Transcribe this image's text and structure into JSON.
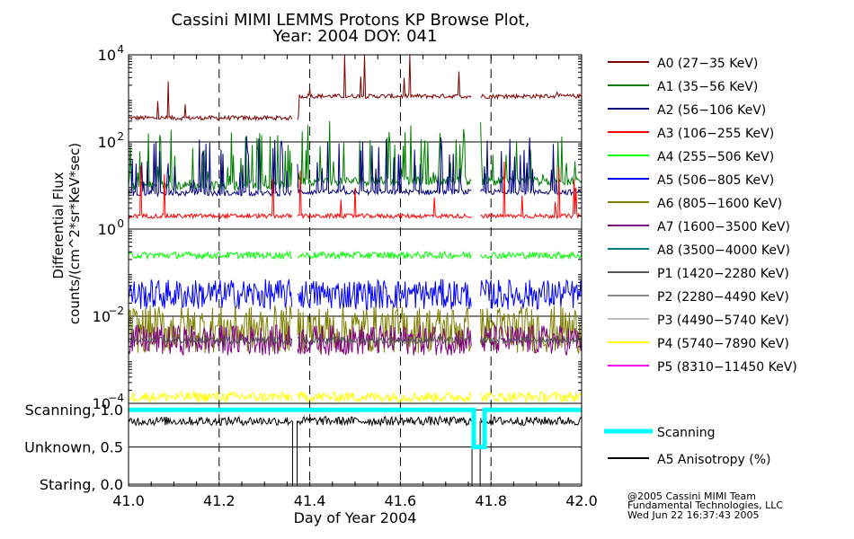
{
  "chart_data": {
    "type": "line",
    "title_line1": "Cassini MIMI LEMMS Protons KP Browse Plot,",
    "title_line2": "Year: 2004 DOY: 041",
    "xlabel": "Day of Year 2004",
    "ylabel_line1": "Differential Flux",
    "ylabel_line2": "counts/(cm^2*sr*KeV*sec)",
    "xlim": [
      41.0,
      42.0
    ],
    "x_ticks": [
      "41.0",
      "41.2",
      "41.4",
      "41.6",
      "41.8",
      "42.0"
    ],
    "x_tick_values": [
      41.0,
      41.2,
      41.4,
      41.6,
      41.8,
      42.0
    ],
    "ylim_log10": [
      -4,
      4
    ],
    "y_ticks": [
      {
        "base": "10",
        "exp": "4",
        "log": 4
      },
      {
        "base": "10",
        "exp": "2",
        "log": 2
      },
      {
        "base": "10",
        "exp": "0",
        "log": 0
      },
      {
        "base": "10",
        "exp": "−2",
        "log": -2
      },
      {
        "base": "10",
        "exp": "−4",
        "log": -4
      }
    ],
    "data_gaps": [
      [
        41.362,
        41.372
      ],
      [
        41.758,
        41.776
      ]
    ],
    "series": [
      {
        "name": "A0 (27−35 KeV)",
        "color": "#7f0000",
        "levels": [
          [
            41.0,
            2.55
          ],
          [
            41.376,
            3.05
          ]
        ],
        "noise": 0.05,
        "spikes": 0.005
      },
      {
        "name": "A1 (35−56 KeV)",
        "color": "#007f00",
        "levels": [
          [
            41.0,
            1.0
          ],
          [
            41.376,
            1.1
          ]
        ],
        "noise": 0.1,
        "spikes": 0.05
      },
      {
        "name": "A2 (56−106 KeV)",
        "color": "#00007f",
        "levels": [
          [
            41.0,
            0.82
          ],
          [
            41.376,
            0.85
          ]
        ],
        "noise": 0.06,
        "spikes": 0.04
      },
      {
        "name": "A3 (106−255 KeV)",
        "color": "#ff0000",
        "levels": [
          [
            41.0,
            0.3
          ]
        ],
        "noise": 0.05,
        "spikes": 0.008
      },
      {
        "name": "A4 (255−506 KeV)",
        "color": "#00ff00",
        "levels": [
          [
            41.0,
            -0.6
          ]
        ],
        "noise": 0.08,
        "spikes": 0.0
      },
      {
        "name": "A5 (506−805 KeV)",
        "color": "#0000ff",
        "levels": [
          [
            41.0,
            -1.5
          ]
        ],
        "noise": 0.35,
        "spikes": 0.0
      },
      {
        "name": "A6 (805−1600 KeV)",
        "color": "#7f7f00",
        "levels": [
          [
            41.0,
            -2.3
          ]
        ],
        "noise": 0.55,
        "spikes": 0.0
      },
      {
        "name": "A7 (1600−3500 KeV)",
        "color": "#7f007f",
        "levels": [
          [
            41.0,
            -2.55
          ]
        ],
        "noise": 0.35,
        "spikes": 0.0
      },
      {
        "name": "A8 (3500−4000 KeV)",
        "color": "#007f7f",
        "levels": [],
        "noise": 0,
        "spikes": 0
      },
      {
        "name": "P1 (1420−2280 KeV)",
        "color": "#555555",
        "levels": [
          [
            41.0,
            -2.55
          ]
        ],
        "noise": 0.08,
        "spikes": 0.0
      },
      {
        "name": "P2 (2280−4490 KeV)",
        "color": "#888888",
        "levels": [],
        "noise": 0,
        "spikes": 0
      },
      {
        "name": "P3 (4490−5740 KeV)",
        "color": "#bbbbbb",
        "levels": [],
        "noise": 0,
        "spikes": 0
      },
      {
        "name": "P4 (5740−7890 KeV)",
        "color": "#ffff00",
        "levels": [
          [
            41.0,
            -3.85
          ]
        ],
        "noise": 0.12,
        "spikes": 0.0
      },
      {
        "name": "P5 (8310−11450 KeV)",
        "color": "#ff00ff",
        "levels": [],
        "noise": 0,
        "spikes": 0
      }
    ],
    "lower_panel": {
      "y_labels": [
        {
          "text": "Scanning, 1.0",
          "value": 1.0
        },
        {
          "text": "Unknown, 0.5",
          "value": 0.5
        },
        {
          "text": "Staring, 0.0",
          "value": 0.0
        }
      ],
      "scanning": {
        "name": "Scanning",
        "color": "#00ffff",
        "segments": [
          [
            41.0,
            1.0
          ],
          [
            41.762,
            1.0
          ],
          [
            41.762,
            0.5
          ],
          [
            41.786,
            0.5
          ],
          [
            41.786,
            1.0
          ],
          [
            42.0,
            1.0
          ]
        ]
      },
      "anisotropy": {
        "name": "A5 Anisotropy (%)",
        "color": "#000000",
        "level": 0.85,
        "noise": 0.06
      }
    },
    "footer": [
      "@2005 Cassini MIMI Team",
      "Fundamental Technologies, LLC",
      "Wed Jun 22 16:37:43 2005"
    ]
  }
}
